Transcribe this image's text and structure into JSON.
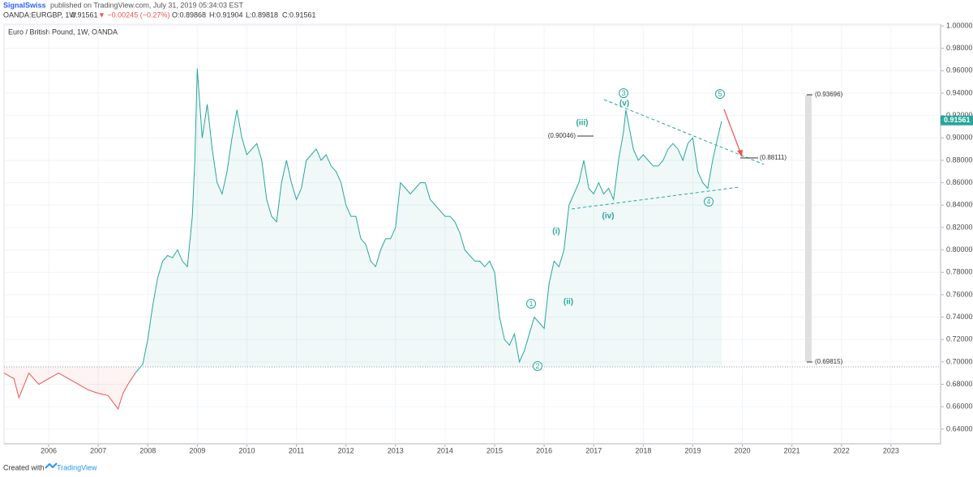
{
  "header": {
    "author": "SignalSwiss",
    "published": "published on TradingView.com, July 31, 2019 05:34:03 EST",
    "symbol": "OANDA:EURGBP, 1W",
    "last": "0.91561",
    "change": "▼ −0.00245 (−0.27%)",
    "open": "O:0.89868",
    "high": "H:0.91904",
    "low": "L:0.89818",
    "close": "C:0.91561"
  },
  "footer": {
    "created": "Created with",
    "brand": "TradingView"
  },
  "chart_data": {
    "type": "line",
    "title": "Euro / British Pound, 1W, OANDA",
    "xlim": [
      2005.1,
      2024.0
    ],
    "ylim": [
      0.6269,
      1.00145
    ],
    "xticks": [
      2006,
      2007,
      2008,
      2009,
      2010,
      2011,
      2012,
      2013,
      2014,
      2015,
      2016,
      2017,
      2018,
      2019,
      2020,
      2021,
      2022,
      2023
    ],
    "yticks": [
      {
        "value": 0.64,
        "label": "0.64000"
      },
      {
        "value": 0.66,
        "label": "0.66000"
      },
      {
        "value": 0.68,
        "label": "0.68000"
      },
      {
        "value": 0.7,
        "label": "0.70000"
      },
      {
        "value": 0.72,
        "label": "0.72000"
      },
      {
        "value": 0.74,
        "label": "0.74000"
      },
      {
        "value": 0.76,
        "label": "0.76000"
      },
      {
        "value": 0.78,
        "label": "0.78000"
      },
      {
        "value": 0.8,
        "label": "0.80000"
      },
      {
        "value": 0.82,
        "label": "0.82000"
      },
      {
        "value": 0.84,
        "label": "0.84000"
      },
      {
        "value": 0.86,
        "label": "0.86000"
      },
      {
        "value": 0.88,
        "label": "0.88000"
      },
      {
        "value": 0.9,
        "label": "0.90000"
      },
      {
        "value": 0.92,
        "label": "0.92000"
      },
      {
        "value": 0.94,
        "label": "0.94000"
      },
      {
        "value": 0.96,
        "label": "0.96000"
      },
      {
        "value": 0.98,
        "label": "0.98000"
      },
      {
        "value": 1.0,
        "label": "1.00000"
      }
    ],
    "grid": true,
    "baseline": 0.6956,
    "last_price": {
      "value": 0.91561,
      "label": "0.91561"
    },
    "series": [
      {
        "name": "below",
        "color": "#ef5350",
        "x": [
          2005.1,
          2005.3,
          2005.4,
          2005.6,
          2005.8,
          2006.0,
          2006.2,
          2006.4,
          2006.6,
          2006.8,
          2007.0,
          2007.2,
          2007.4,
          2007.5,
          2007.6,
          2007.75
        ],
        "values": [
          0.69,
          0.685,
          0.668,
          0.69,
          0.68,
          0.685,
          0.69,
          0.685,
          0.68,
          0.675,
          0.672,
          0.67,
          0.658,
          0.672,
          0.68,
          0.69
        ]
      },
      {
        "name": "above",
        "color": "#26a69a",
        "x": [
          2007.75,
          2007.9,
          2008.0,
          2008.1,
          2008.2,
          2008.3,
          2008.4,
          2008.5,
          2008.6,
          2008.7,
          2008.8,
          2008.9,
          2008.95,
          2009.0,
          2009.1,
          2009.2,
          2009.3,
          2009.4,
          2009.5,
          2009.6,
          2009.7,
          2009.8,
          2009.9,
          2010.0,
          2010.1,
          2010.2,
          2010.3,
          2010.4,
          2010.5,
          2010.6,
          2010.7,
          2010.8,
          2010.9,
          2011.0,
          2011.1,
          2011.2,
          2011.3,
          2011.4,
          2011.5,
          2011.6,
          2011.7,
          2011.8,
          2011.9,
          2012.0,
          2012.1,
          2012.2,
          2012.3,
          2012.4,
          2012.5,
          2012.6,
          2012.7,
          2012.8,
          2012.9,
          2013.0,
          2013.1,
          2013.2,
          2013.3,
          2013.4,
          2013.5,
          2013.6,
          2013.7,
          2013.8,
          2013.9,
          2014.0,
          2014.1,
          2014.2,
          2014.3,
          2014.4,
          2014.5,
          2014.6,
          2014.7,
          2014.8,
          2014.9,
          2015.0,
          2015.1,
          2015.2,
          2015.3,
          2015.4,
          2015.5,
          2015.6,
          2015.7,
          2015.8,
          2015.9,
          2016.0,
          2016.1,
          2016.2,
          2016.3,
          2016.4,
          2016.5,
          2016.6,
          2016.7,
          2016.8,
          2016.9,
          2017.0,
          2017.1,
          2017.2,
          2017.3,
          2017.4,
          2017.5,
          2017.6,
          2017.65,
          2017.8,
          2017.9,
          2018.0,
          2018.1,
          2018.2,
          2018.3,
          2018.4,
          2018.5,
          2018.6,
          2018.7,
          2018.8,
          2018.9,
          2019.0,
          2019.1,
          2019.2,
          2019.3,
          2019.4,
          2019.5,
          2019.58
        ],
        "values": [
          0.69,
          0.698,
          0.72,
          0.75,
          0.775,
          0.79,
          0.795,
          0.793,
          0.8,
          0.79,
          0.785,
          0.83,
          0.88,
          0.962,
          0.9,
          0.93,
          0.89,
          0.86,
          0.85,
          0.87,
          0.9,
          0.925,
          0.9,
          0.885,
          0.89,
          0.895,
          0.88,
          0.845,
          0.83,
          0.825,
          0.86,
          0.88,
          0.86,
          0.845,
          0.855,
          0.88,
          0.885,
          0.89,
          0.88,
          0.885,
          0.875,
          0.87,
          0.86,
          0.84,
          0.83,
          0.83,
          0.81,
          0.805,
          0.79,
          0.785,
          0.8,
          0.81,
          0.81,
          0.82,
          0.86,
          0.855,
          0.85,
          0.855,
          0.86,
          0.86,
          0.845,
          0.84,
          0.835,
          0.83,
          0.83,
          0.825,
          0.815,
          0.8,
          0.795,
          0.79,
          0.79,
          0.785,
          0.79,
          0.78,
          0.74,
          0.72,
          0.715,
          0.725,
          0.7,
          0.71,
          0.725,
          0.74,
          0.735,
          0.73,
          0.77,
          0.79,
          0.785,
          0.8,
          0.84,
          0.85,
          0.86,
          0.88,
          0.855,
          0.85,
          0.86,
          0.85,
          0.855,
          0.845,
          0.88,
          0.905,
          0.925,
          0.89,
          0.88,
          0.885,
          0.88,
          0.875,
          0.875,
          0.88,
          0.89,
          0.895,
          0.89,
          0.88,
          0.895,
          0.9,
          0.87,
          0.86,
          0.855,
          0.88,
          0.9,
          0.915
        ]
      }
    ],
    "wave_labels": [
      "(iii)",
      "(v)",
      "(i)",
      "(ii)",
      "(iv)"
    ],
    "wave_circles": [
      "1",
      "2",
      "3",
      "4",
      "5"
    ],
    "levels": [
      "(0.90046)",
      "(0.88111)",
      "(0.93696)",
      "(0.69815)"
    ]
  }
}
